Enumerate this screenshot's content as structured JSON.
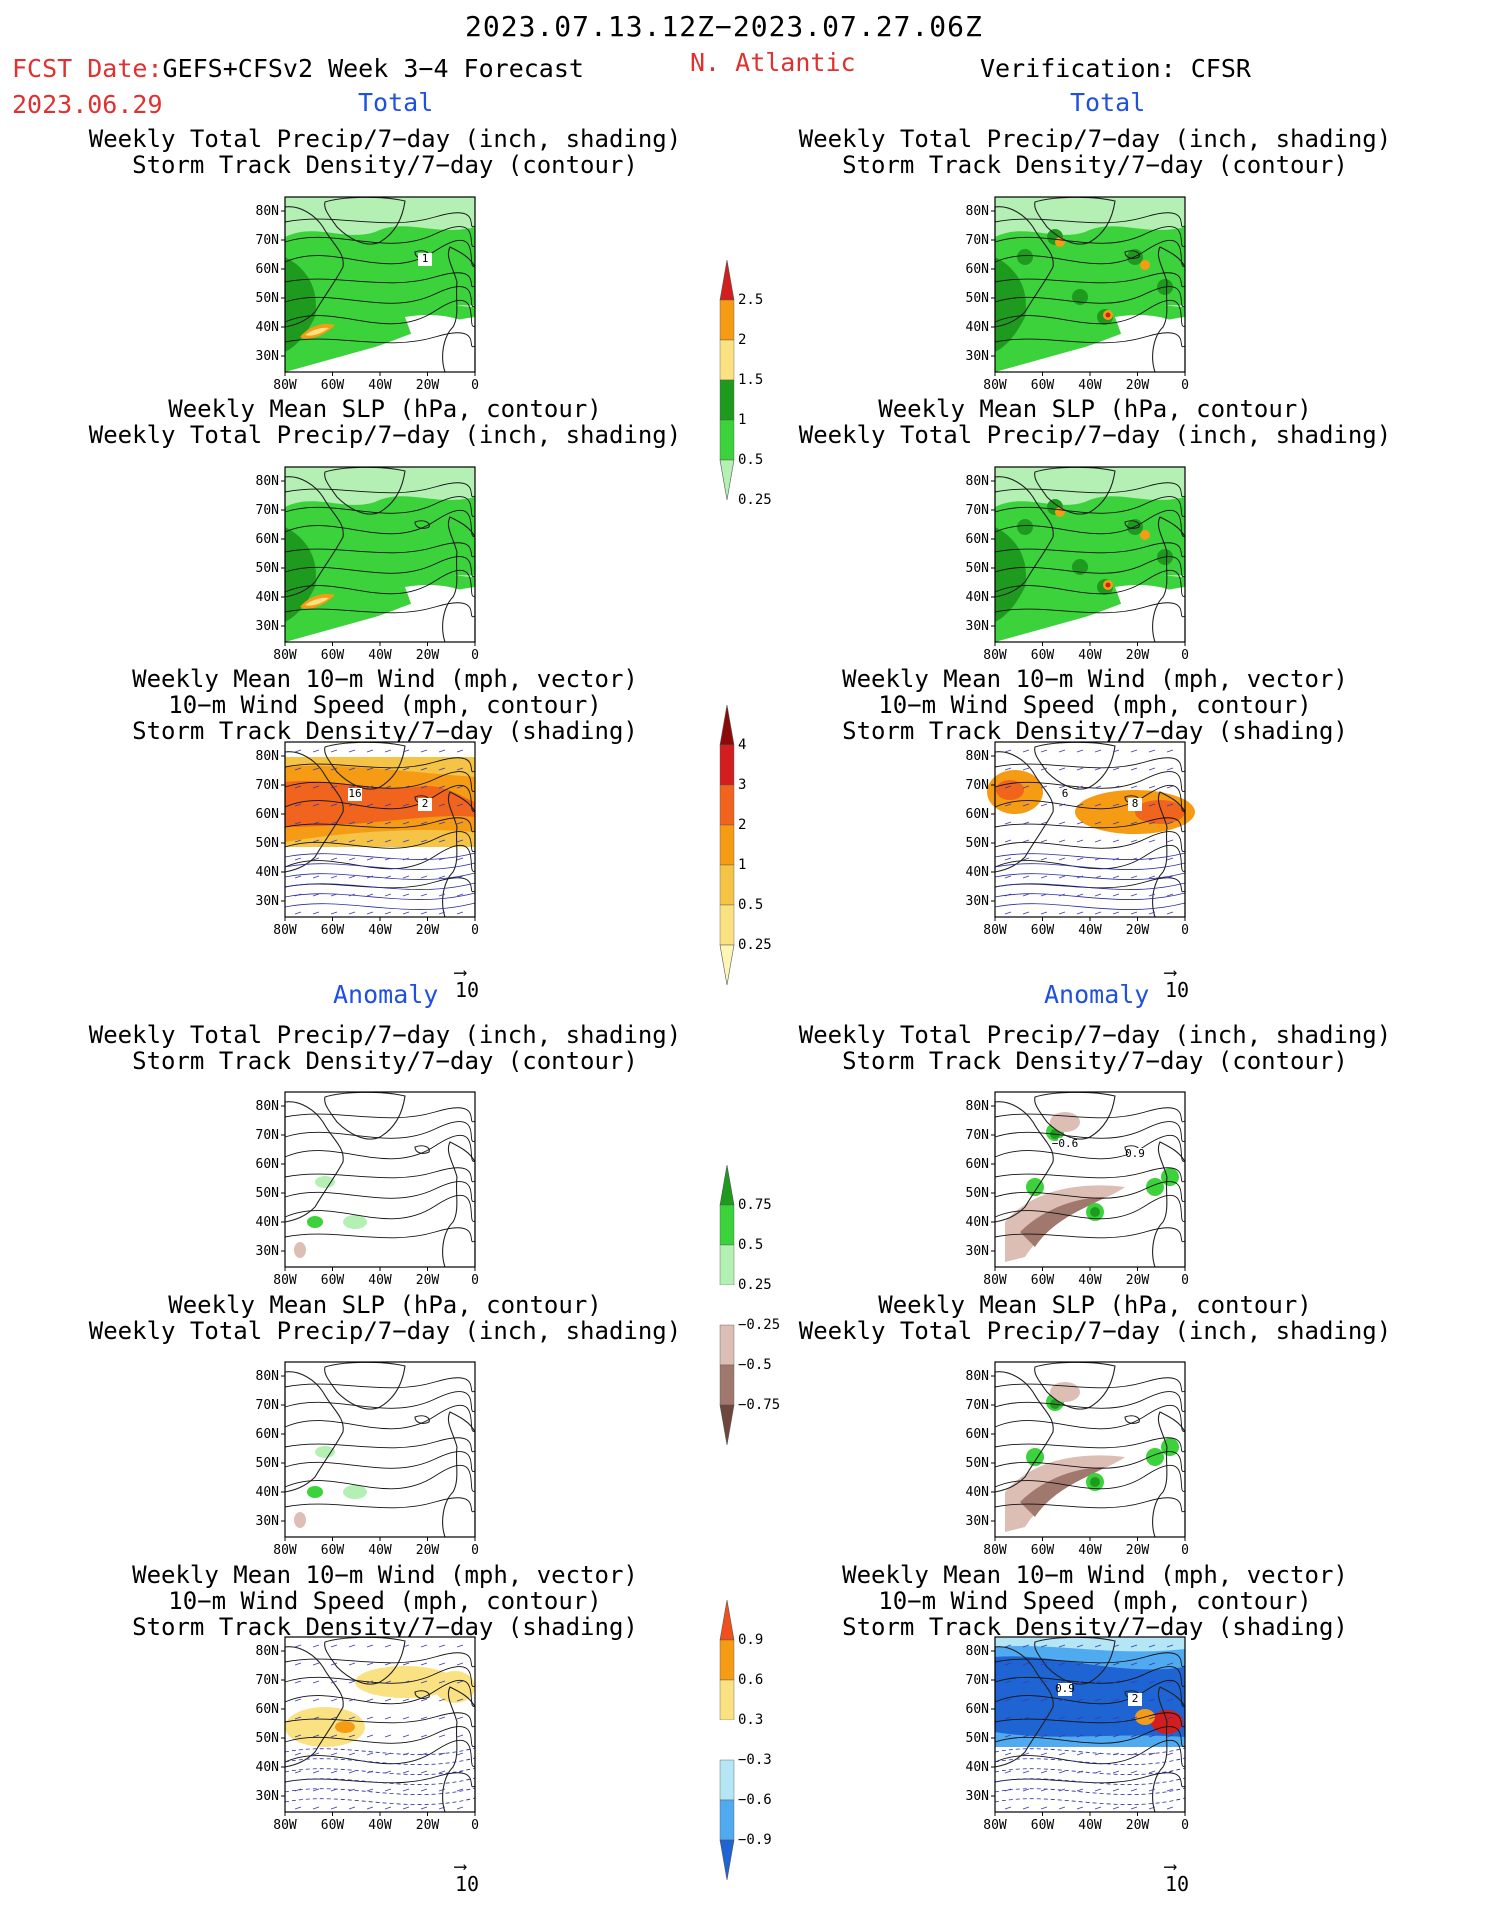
{
  "header": {
    "date_range": "2023.07.13.12Z−2023.07.27.06Z",
    "fcst_prefix": "FCST Date:",
    "model": "GEFS+CFSv2 Week 3−4 Forecast",
    "fcst_date": "2023.06.29",
    "region": "N. Atlantic",
    "verification": "Verification: CFSR",
    "section_total": "Total",
    "section_anomaly": "Anomaly"
  },
  "titles": {
    "precip_storm": [
      "Weekly Total Precip/7−day (inch, shading)",
      "Storm Track Density/7−day (contour)"
    ],
    "slp_precip": [
      "Weekly Mean SLP (hPa, contour)",
      "Weekly Total Precip/7−day (inch, shading)"
    ],
    "wind_storm": [
      "Weekly Mean 10−m Wind (mph, vector)",
      "10−m Wind Speed (mph, contour)",
      "Storm Track Density/7−day (shading)"
    ]
  },
  "axes": {
    "lat_ticks": [
      "80N",
      "70N",
      "60N",
      "50N",
      "40N",
      "30N"
    ],
    "lon_ticks": [
      "80W",
      "60W",
      "40W",
      "20W",
      "0"
    ]
  },
  "vector_ref": "10",
  "colorbars": {
    "precip_total": {
      "labels": [
        "2.5",
        "2",
        "1.5",
        "1",
        "0.5",
        "0.25"
      ],
      "colors": [
        "#d21e1e",
        "#f59b14",
        "#fae182",
        "#1e9b1e",
        "#3cd23c",
        "#b4f0b4"
      ]
    },
    "storm_total": {
      "labels": [
        "4",
        "3",
        "2",
        "1",
        "0.5",
        "0.25"
      ],
      "colors": [
        "#8c0a0a",
        "#d21e1e",
        "#f0641e",
        "#f59b14",
        "#f5c346",
        "#fae182",
        "#fff5b4"
      ]
    },
    "precip_anom": {
      "labels": [
        "0.75",
        "0.5",
        "0.25",
        "−0.25",
        "−0.5",
        "−0.75"
      ],
      "colors": [
        "#1e9b1e",
        "#3cd23c",
        "#b4f0b4",
        "#ffffff",
        "#dcbeb4",
        "#a0786e",
        "#6e463c"
      ]
    },
    "storm_anom": {
      "labels": [
        "0.9",
        "0.6",
        "0.3",
        "−0.3",
        "−0.6",
        "−0.9"
      ],
      "colors": [
        "#f0501e",
        "#f59b14",
        "#fae182",
        "#ffffff",
        "#b4e6f5",
        "#50aaf0",
        "#1e64d2"
      ]
    }
  },
  "maps": {
    "total_precip_storm_fcst": {
      "contour_label": "1"
    },
    "total_wind_fcst": {
      "contour_labels": [
        "2",
        "16"
      ]
    },
    "total_wind_verif": {
      "contour_labels": [
        "8",
        "6"
      ]
    },
    "anom_precip_storm_verif": {
      "contour_labels": [
        "0.9",
        "−0.6"
      ]
    },
    "anom_wind_verif": {
      "contour_labels": [
        "2",
        "0.9"
      ]
    }
  }
}
